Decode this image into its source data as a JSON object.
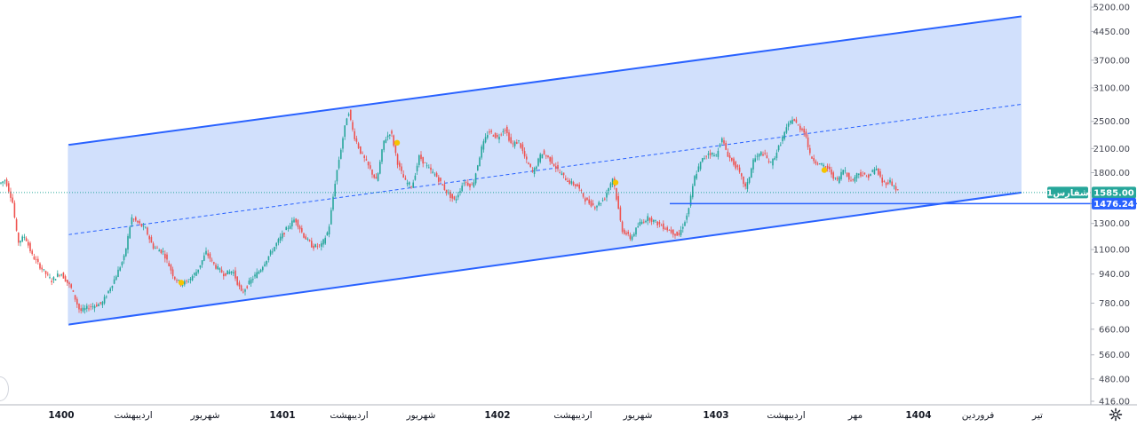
{
  "chart_data": {
    "type": "candlestick",
    "symbol_tag": "شفارس1",
    "last_price": "1585.00",
    "support_level": "1476.24",
    "y_scale": "log",
    "ylim": [
      416,
      5400
    ],
    "y_ticks": [
      "5200.00",
      "4450.00",
      "3700.00",
      "3100.00",
      "2500.00",
      "2100.00",
      "1800.00",
      "1300.00",
      "1100.00",
      "940.00",
      "780.00",
      "660.00",
      "560.00",
      "480.00",
      "416.00"
    ],
    "x_ticks": [
      {
        "label": "1400",
        "bold": true
      },
      {
        "label": "اردیبهشت",
        "bold": false
      },
      {
        "label": "شهریور",
        "bold": false
      },
      {
        "label": "1401",
        "bold": true
      },
      {
        "label": "اردیبهشت",
        "bold": false
      },
      {
        "label": "شهریور",
        "bold": false
      },
      {
        "label": "1402",
        "bold": true
      },
      {
        "label": "اردیبهشت",
        "bold": false
      },
      {
        "label": "شهریور",
        "bold": false
      },
      {
        "label": "1403",
        "bold": true
      },
      {
        "label": "اردیبهشت",
        "bold": false
      },
      {
        "label": "مهر",
        "bold": false
      },
      {
        "label": "1404",
        "bold": true
      },
      {
        "label": "فروردین",
        "bold": false
      },
      {
        "label": "تیر",
        "bold": false
      }
    ],
    "price_path": [
      [
        0,
        1680
      ],
      [
        6,
        1720
      ],
      [
        14,
        1500
      ],
      [
        20,
        1150
      ],
      [
        28,
        1200
      ],
      [
        36,
        1060
      ],
      [
        46,
        980
      ],
      [
        58,
        900
      ],
      [
        68,
        950
      ],
      [
        80,
        860
      ],
      [
        90,
        740
      ],
      [
        100,
        760
      ],
      [
        115,
        780
      ],
      [
        128,
        900
      ],
      [
        140,
        1050
      ],
      [
        148,
        1350
      ],
      [
        156,
        1300
      ],
      [
        164,
        1250
      ],
      [
        172,
        1120
      ],
      [
        184,
        1080
      ],
      [
        196,
        920
      ],
      [
        204,
        880
      ],
      [
        212,
        900
      ],
      [
        222,
        960
      ],
      [
        232,
        1080
      ],
      [
        242,
        990
      ],
      [
        252,
        940
      ],
      [
        262,
        960
      ],
      [
        272,
        830
      ],
      [
        282,
        900
      ],
      [
        292,
        960
      ],
      [
        302,
        1050
      ],
      [
        312,
        1150
      ],
      [
        322,
        1250
      ],
      [
        332,
        1340
      ],
      [
        342,
        1200
      ],
      [
        352,
        1120
      ],
      [
        362,
        1130
      ],
      [
        370,
        1250
      ],
      [
        378,
        1750
      ],
      [
        386,
        2250
      ],
      [
        392,
        2700
      ],
      [
        398,
        2300
      ],
      [
        406,
        2050
      ],
      [
        416,
        1850
      ],
      [
        424,
        1700
      ],
      [
        432,
        2200
      ],
      [
        440,
        2350
      ],
      [
        448,
        1900
      ],
      [
        456,
        1700
      ],
      [
        464,
        1650
      ],
      [
        472,
        2000
      ],
      [
        482,
        1850
      ],
      [
        492,
        1750
      ],
      [
        502,
        1600
      ],
      [
        512,
        1500
      ],
      [
        522,
        1700
      ],
      [
        532,
        1650
      ],
      [
        542,
        2100
      ],
      [
        550,
        2350
      ],
      [
        560,
        2250
      ],
      [
        568,
        2400
      ],
      [
        576,
        2150
      ],
      [
        584,
        2200
      ],
      [
        592,
        1950
      ],
      [
        600,
        1800
      ],
      [
        610,
        2050
      ],
      [
        620,
        1950
      ],
      [
        630,
        1800
      ],
      [
        640,
        1700
      ],
      [
        650,
        1650
      ],
      [
        660,
        1500
      ],
      [
        670,
        1450
      ],
      [
        680,
        1520
      ],
      [
        690,
        1750
      ],
      [
        700,
        1250
      ],
      [
        710,
        1180
      ],
      [
        720,
        1300
      ],
      [
        730,
        1350
      ],
      [
        740,
        1300
      ],
      [
        752,
        1250
      ],
      [
        764,
        1200
      ],
      [
        774,
        1380
      ],
      [
        782,
        1750
      ],
      [
        790,
        1950
      ],
      [
        798,
        2050
      ],
      [
        806,
        2000
      ],
      [
        812,
        2250
      ],
      [
        820,
        2000
      ],
      [
        830,
        1850
      ],
      [
        840,
        1620
      ],
      [
        848,
        1950
      ],
      [
        858,
        2050
      ],
      [
        868,
        1900
      ],
      [
        876,
        2100
      ],
      [
        884,
        2350
      ],
      [
        892,
        2550
      ],
      [
        900,
        2400
      ],
      [
        906,
        2350
      ],
      [
        912,
        2000
      ],
      [
        922,
        1900
      ],
      [
        932,
        1850
      ],
      [
        942,
        1700
      ],
      [
        950,
        1850
      ],
      [
        958,
        1700
      ],
      [
        966,
        1800
      ],
      [
        976,
        1750
      ],
      [
        986,
        1850
      ],
      [
        994,
        1680
      ],
      [
        1002,
        1700
      ],
      [
        1012,
        1585
      ]
    ],
    "markers": [
      {
        "x": 447,
        "y": 2180
      },
      {
        "x": 204,
        "y": 890
      },
      {
        "x": 693,
        "y": 1690
      },
      {
        "x": 928,
        "y": 1830
      }
    ],
    "channel": {
      "top": [
        [
          77,
          2150
        ],
        [
          1150,
          4900
        ]
      ],
      "bottom": [
        [
          77,
          680
        ],
        [
          1150,
          1585
        ]
      ],
      "mid": [
        [
          77,
          1210
        ],
        [
          1150,
          2790
        ]
      ]
    },
    "h_line": [
      [
        754,
        1476.24
      ],
      [
        1280,
        1476.24
      ]
    ],
    "colors": {
      "up": "#26a69a",
      "down": "#ef5350",
      "channel_line": "#2962ff",
      "channel_fill": "#c9dafb",
      "tag_green": "#26a69a",
      "tag_blue": "#2962ff",
      "marker": "#f5c400"
    }
  }
}
